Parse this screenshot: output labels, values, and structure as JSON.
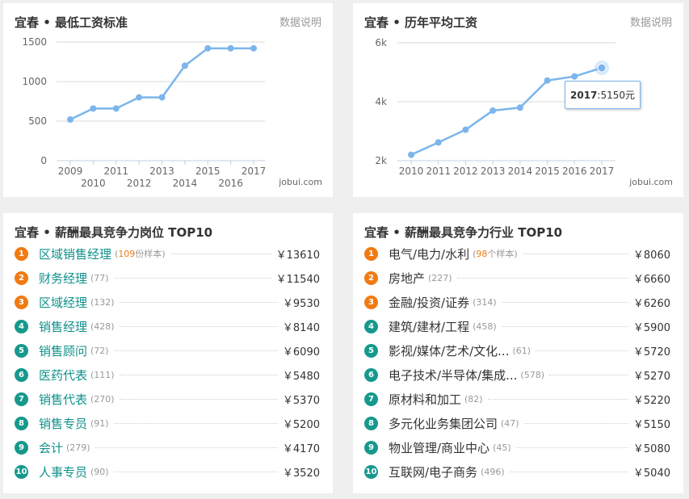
{
  "panels": {
    "min_wage": {
      "title": "宜春 • 最低工资标准",
      "link": "数据说明",
      "watermark": "jobui.com"
    },
    "avg_wage": {
      "title": "宜春 • 历年平均工资",
      "link": "数据说明",
      "watermark": "jobui.com",
      "tooltip_year": "2017",
      "tooltip_value": ":5150元"
    },
    "top_jobs": {
      "title": "宜春 • 薪酬最具竞争力岗位 TOP10",
      "items": [
        {
          "rank": "1",
          "name": "区域销售经理",
          "count": "109",
          "count_suffix": "份样本",
          "salary": "￥13610"
        },
        {
          "rank": "2",
          "name": "财务经理",
          "count": "(77)",
          "salary": "￥11540"
        },
        {
          "rank": "3",
          "name": "区域经理",
          "count": "(132)",
          "salary": "￥9530"
        },
        {
          "rank": "4",
          "name": "销售经理",
          "count": "(428)",
          "salary": "￥8140"
        },
        {
          "rank": "5",
          "name": "销售顾问",
          "count": "(72)",
          "salary": "￥6090"
        },
        {
          "rank": "6",
          "name": "医药代表",
          "count": "(111)",
          "salary": "￥5480"
        },
        {
          "rank": "7",
          "name": "销售代表",
          "count": "(270)",
          "salary": "￥5370"
        },
        {
          "rank": "8",
          "name": "销售专员",
          "count": "(91)",
          "salary": "￥5200"
        },
        {
          "rank": "9",
          "name": "会计",
          "count": "(279)",
          "salary": "￥4170"
        },
        {
          "rank": "10",
          "name": "人事专员",
          "count": "(90)",
          "salary": "￥3520"
        }
      ]
    },
    "top_industries": {
      "title": "宜春 • 薪酬最具竞争力行业 TOP10",
      "items": [
        {
          "rank": "1",
          "name": "电气/电力/水利",
          "count": "98",
          "count_suffix": "个样本",
          "salary": "￥8060"
        },
        {
          "rank": "2",
          "name": "房地产",
          "count": "(227)",
          "salary": "￥6660"
        },
        {
          "rank": "3",
          "name": "金融/投资/证券",
          "count": "(314)",
          "salary": "￥6260"
        },
        {
          "rank": "4",
          "name": "建筑/建材/工程",
          "count": "(458)",
          "salary": "￥5900"
        },
        {
          "rank": "5",
          "name": "影视/媒体/艺术/文化...",
          "count": "(61)",
          "salary": "￥5720"
        },
        {
          "rank": "6",
          "name": "电子技术/半导体/集成...",
          "count": "(578)",
          "salary": "￥5270"
        },
        {
          "rank": "7",
          "name": "原材料和加工",
          "count": "(82)",
          "salary": "￥5220"
        },
        {
          "rank": "8",
          "name": "多元化业务集团公司",
          "count": "(47)",
          "salary": "￥5150"
        },
        {
          "rank": "9",
          "name": "物业管理/商业中心",
          "count": "(45)",
          "salary": "￥5080"
        },
        {
          "rank": "10",
          "name": "互联网/电子商务",
          "count": "(496)",
          "salary": "￥5040"
        }
      ]
    }
  },
  "chart_data": [
    {
      "type": "line",
      "x": [
        "2009",
        "2010",
        "2011",
        "2012",
        "2013",
        "2014",
        "2015",
        "2016",
        "2017"
      ],
      "series": [
        {
          "values": [
            520,
            660,
            660,
            800,
            800,
            1200,
            1420,
            1420,
            1420
          ]
        }
      ],
      "y_ticks": [
        "0",
        "500",
        "1000",
        "1500"
      ],
      "ylim": [
        0,
        1500
      ],
      "grid": true,
      "color": "#7cb5ec"
    },
    {
      "type": "line",
      "x": [
        "2010",
        "2011",
        "2012",
        "2013",
        "2014",
        "2015",
        "2016",
        "2017"
      ],
      "series": [
        {
          "values": [
            2200,
            2620,
            3050,
            3700,
            3800,
            4720,
            4860,
            5150
          ]
        }
      ],
      "y_ticks": [
        "2k",
        "4k",
        "6k"
      ],
      "ylim": [
        2000,
        6000
      ],
      "grid": true,
      "color": "#7cb5ec",
      "highlight_index": 7
    }
  ]
}
